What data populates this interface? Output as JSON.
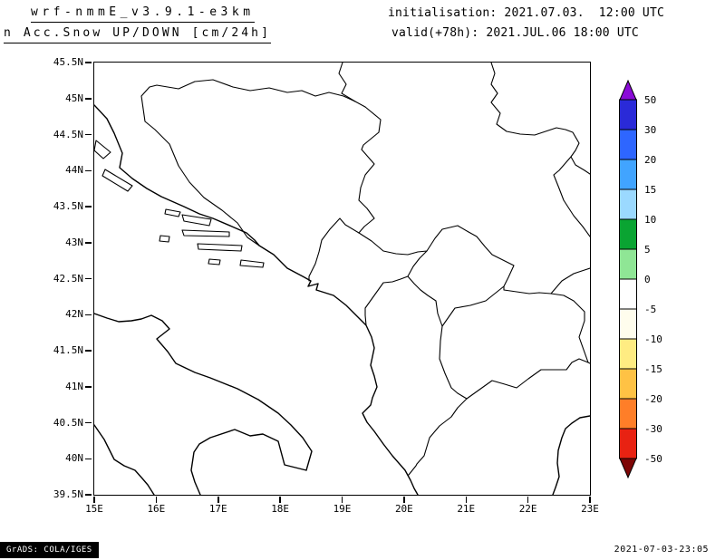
{
  "header": {
    "model_title": "wrf-nmmE_v3.9.1-e3km",
    "product_title": "n Acc.Snow UP/DOWN [cm/24h]",
    "init_line": "initialisation: 2021.07.03.  12:00 UTC",
    "valid_line": "valid(+78h): 2021.JUL.06 18:00 UTC"
  },
  "footer": {
    "credit_badge": "GrADS: COLA/IGES",
    "timestamp": "2021-07-03-23:05"
  },
  "chart_data": {
    "type": "map",
    "title": "Acc.Snow UP/DOWN [cm/24h]",
    "subtitle": "wrf-nmmE_v3.9.1-e3km, valid(+78h): 2021.JUL.06 18:00 UTC",
    "region": "Adriatic / Balkans basemap with coastlines and country borders",
    "grid": "off",
    "shaded_regions": [],
    "x_axis": {
      "ticks": [
        "15E",
        "16E",
        "17E",
        "18E",
        "19E",
        "20E",
        "21E",
        "22E",
        "23E"
      ],
      "range_deg_east": [
        15,
        23
      ]
    },
    "y_axis": {
      "ticks": [
        "45.5N",
        "45N",
        "44.5N",
        "44N",
        "43.5N",
        "43N",
        "42.5N",
        "42N",
        "41.5N",
        "41N",
        "40.5N",
        "40N",
        "39.5N"
      ],
      "range_deg_north": [
        39.5,
        45.5
      ]
    },
    "colorbar": {
      "units": "cm/24h",
      "labels": [
        "50",
        "30",
        "20",
        "15",
        "10",
        "5",
        "0",
        "-5",
        "-10",
        "-15",
        "-20",
        "-30",
        "-50"
      ],
      "top_arrow_color": "#8a0bd8",
      "bottom_arrow_color": "#7e0606",
      "segment_colors": [
        "#2a2ad8",
        "#2e66ff",
        "#41a4ff",
        "#9bd9ff",
        "#0aa432",
        "#8fe695",
        "#ffffff",
        "#fffded",
        "#ffec82",
        "#ffc244",
        "#ff7e28",
        "#e82212"
      ]
    }
  }
}
